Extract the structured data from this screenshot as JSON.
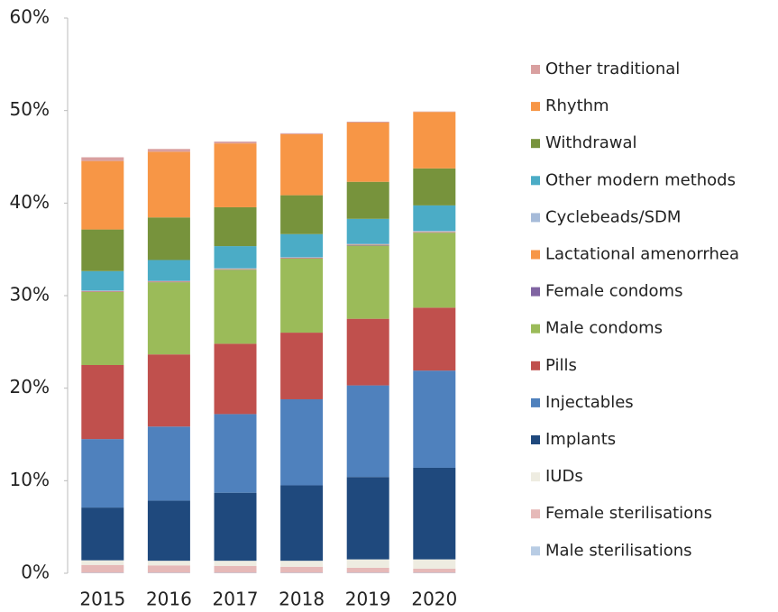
{
  "chart_data": {
    "type": "stacked_bar",
    "categories": [
      "2015",
      "2016",
      "2017",
      "2018",
      "2019",
      "2020"
    ],
    "series": [
      {
        "name": "Male sterilisations",
        "color": "#b8cce4",
        "values": [
          0.05,
          0.05,
          0.05,
          0.05,
          0.05,
          0.05
        ]
      },
      {
        "name": "Female sterilisations",
        "color": "#e6b9b8",
        "values": [
          0.85,
          0.8,
          0.75,
          0.65,
          0.55,
          0.45
        ]
      },
      {
        "name": "IUDs",
        "color": "#eeece1",
        "values": [
          0.5,
          0.5,
          0.55,
          0.65,
          0.9,
          1.0
        ]
      },
      {
        "name": "Implants",
        "color": "#1f497d",
        "values": [
          5.7,
          6.5,
          7.35,
          8.15,
          8.9,
          9.9
        ]
      },
      {
        "name": "Injectables",
        "color": "#4f81bd",
        "values": [
          7.4,
          8.0,
          8.5,
          9.3,
          9.9,
          10.5
        ]
      },
      {
        "name": "Pills",
        "color": "#c0504d",
        "values": [
          8.0,
          7.8,
          7.6,
          7.2,
          7.2,
          6.8
        ]
      },
      {
        "name": "Male condoms",
        "color": "#9bbb59",
        "values": [
          7.9,
          7.8,
          8.0,
          8.0,
          7.9,
          8.1
        ]
      },
      {
        "name": "Female condoms",
        "color": "#8064a2",
        "values": [
          0.05,
          0.05,
          0.05,
          0.05,
          0.05,
          0.05
        ]
      },
      {
        "name": "Lactational amenorrhea",
        "color": "#f79646",
        "values": [
          0.05,
          0.05,
          0.05,
          0.05,
          0.05,
          0.05
        ]
      },
      {
        "name": "Cyclebeads/SDM",
        "color": "#a6bbd9",
        "values": [
          0.05,
          0.05,
          0.05,
          0.05,
          0.1,
          0.1
        ]
      },
      {
        "name": "Other modern methods",
        "color": "#4bacc6",
        "values": [
          2.1,
          2.25,
          2.4,
          2.5,
          2.7,
          2.75
        ]
      },
      {
        "name": "Withdrawal",
        "color": "#77933c",
        "values": [
          4.5,
          4.6,
          4.2,
          4.2,
          4.0,
          4.0
        ]
      },
      {
        "name": "Rhythm",
        "color": "#f79646",
        "values": [
          7.4,
          7.1,
          6.9,
          6.6,
          6.4,
          6.1
        ]
      },
      {
        "name": "Other traditional",
        "color": "#d9a0a0",
        "values": [
          0.4,
          0.3,
          0.2,
          0.1,
          0.1,
          0.05
        ]
      }
    ],
    "ylim": [
      0,
      60
    ],
    "yticks": [
      {
        "value": 0,
        "label": "0%"
      },
      {
        "value": 10,
        "label": "10%"
      },
      {
        "value": 20,
        "label": "20%"
      },
      {
        "value": 30,
        "label": "30%"
      },
      {
        "value": 40,
        "label": "40%"
      },
      {
        "value": 50,
        "label": "50%"
      },
      {
        "value": 60,
        "label": "60%"
      }
    ],
    "legend": "right"
  }
}
